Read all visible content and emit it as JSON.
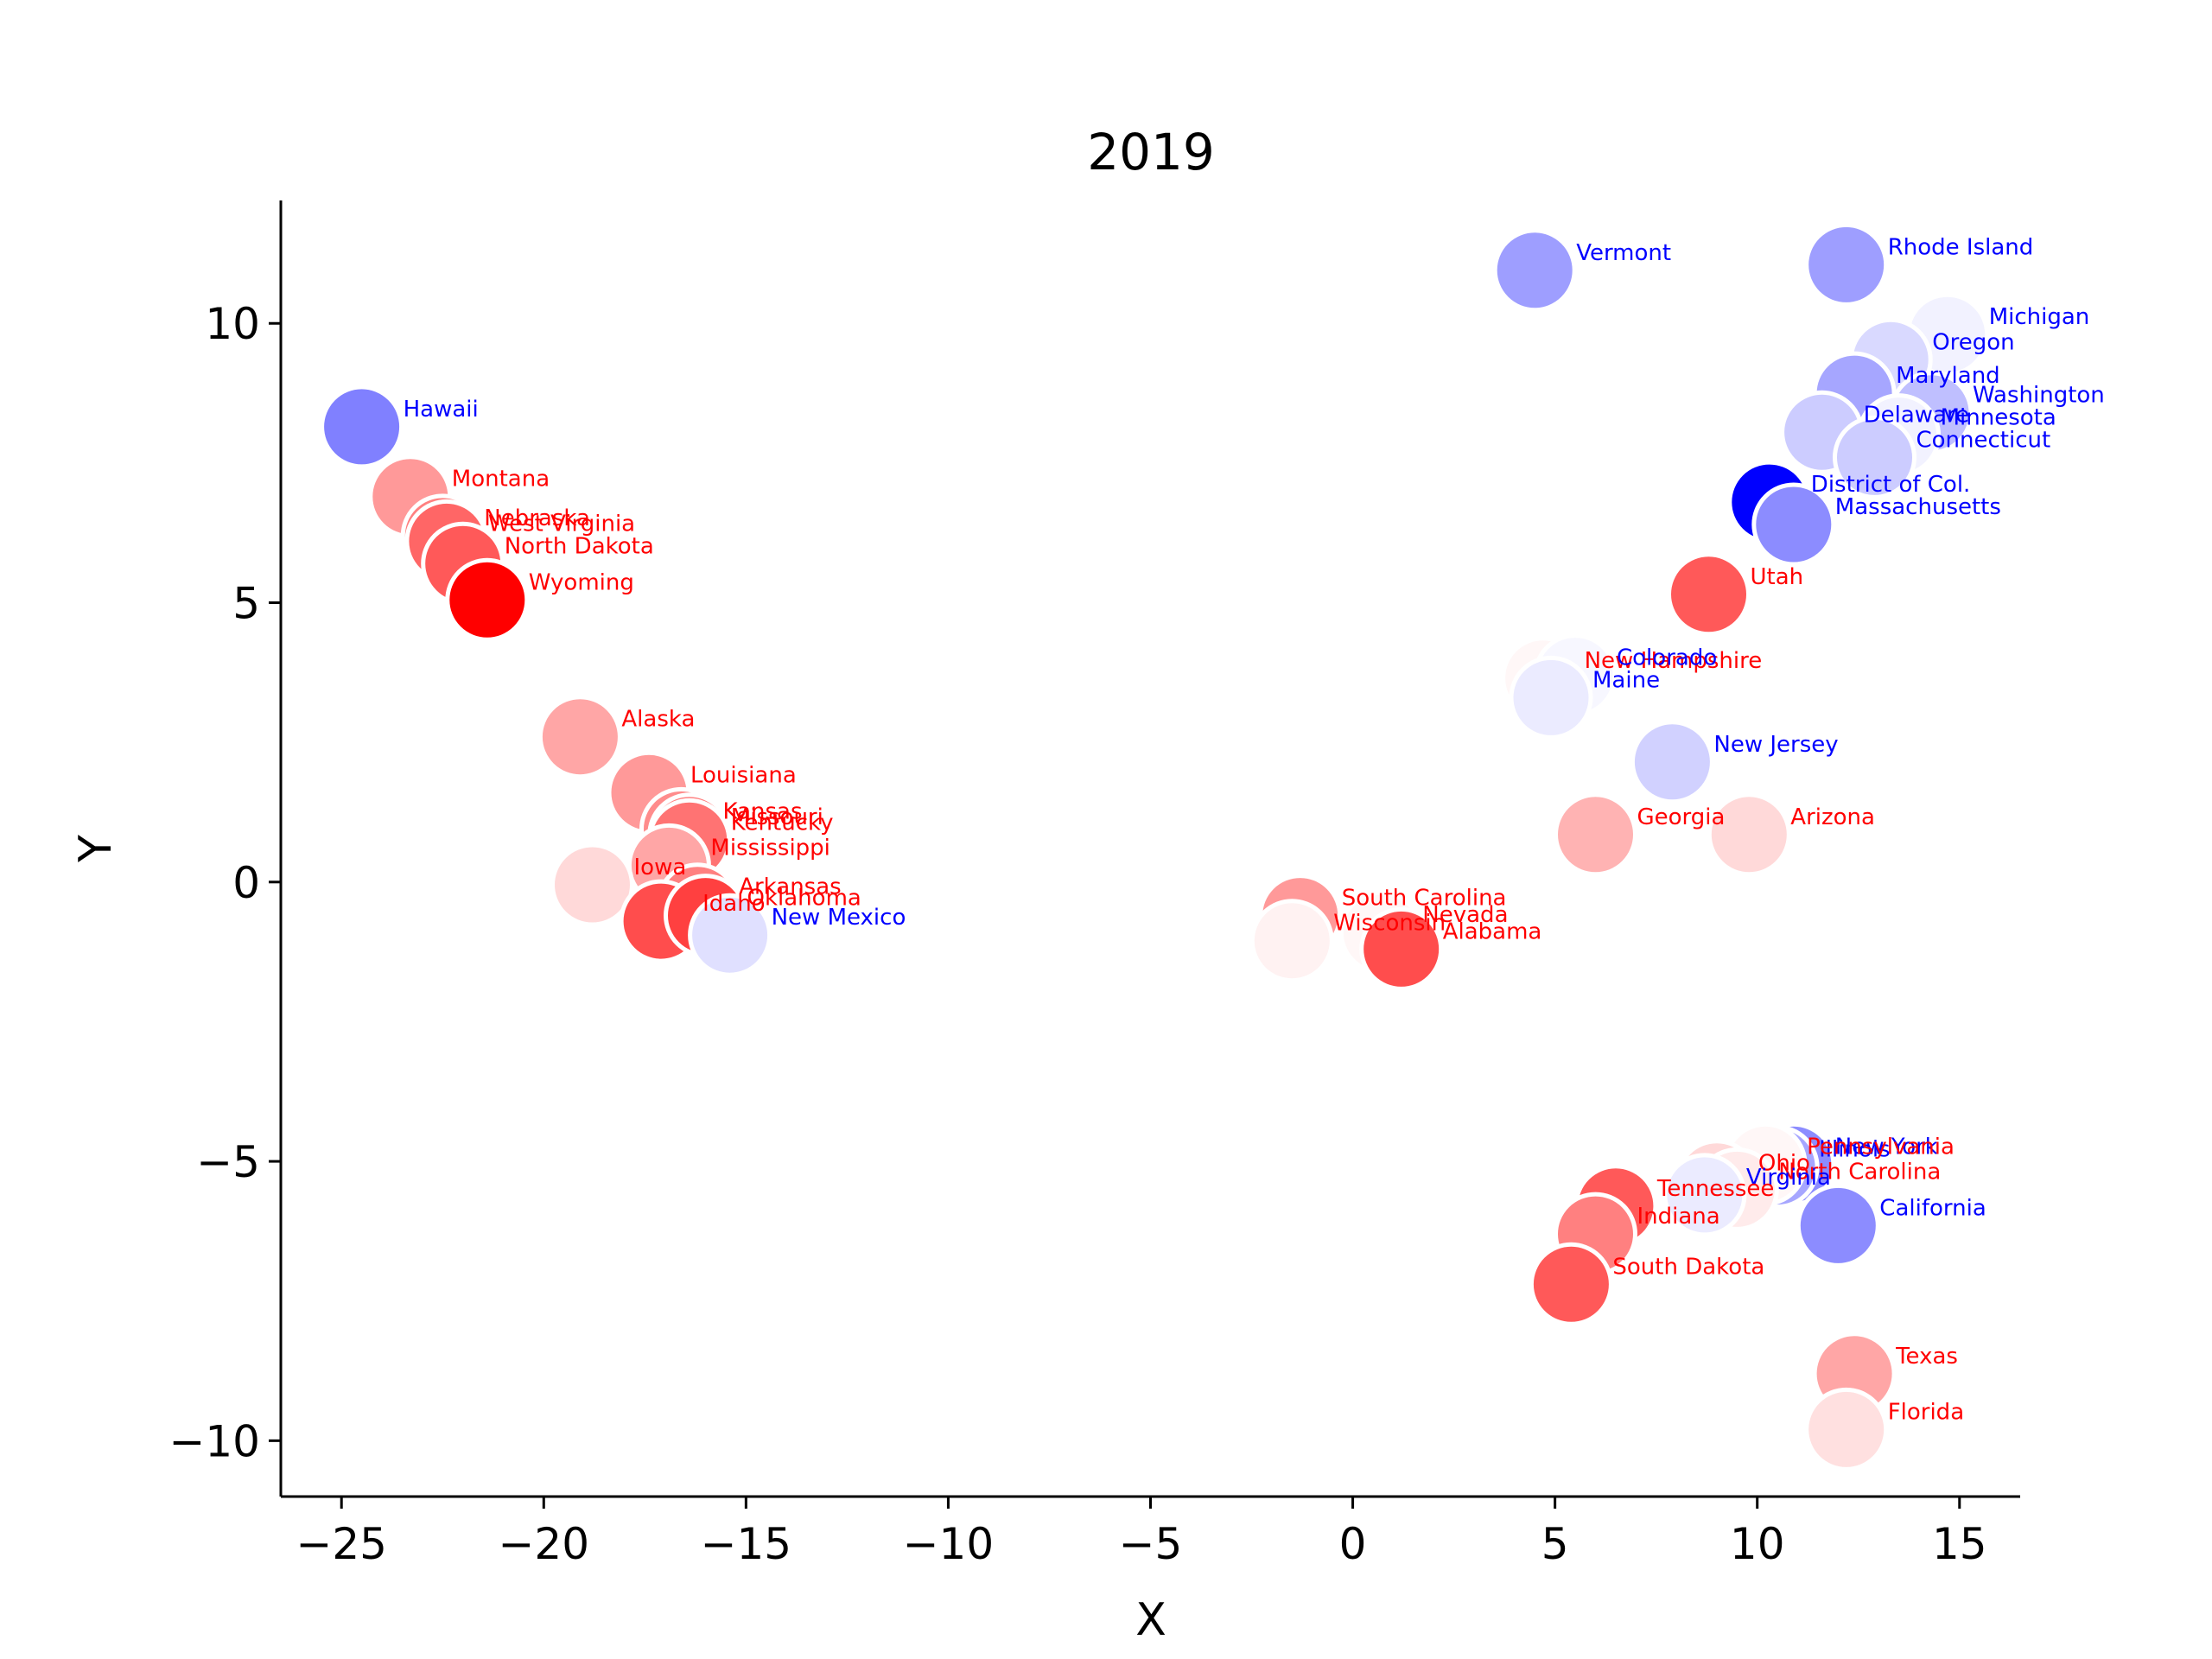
{
  "chart_data": {
    "type": "scatter",
    "title": "2019",
    "xlabel": "X",
    "ylabel": "Y",
    "xlim": [
      -26.5,
      16.5
    ],
    "ylim": [
      -11,
      12.2
    ],
    "xticks": [
      -25,
      -20,
      -15,
      -10,
      -5,
      0,
      5,
      10,
      15
    ],
    "yticks": [
      -10,
      -5,
      0,
      5,
      10
    ],
    "xtick_labels": [
      "−25",
      "−20",
      "−15",
      "−10",
      "−5",
      "0",
      "5",
      "10",
      "15"
    ],
    "ytick_labels": [
      "−10",
      "−5",
      "0",
      "5",
      "10"
    ],
    "grid": false,
    "legend": "none",
    "colors": {
      "red_party": "#ff0000",
      "blue_party": "#0000ff",
      "point_edge": "#ffffff"
    },
    "points": [
      {
        "label": "Hawaii",
        "x": -24.5,
        "y": 8.15,
        "party": "blue",
        "intensity": 0.5
      },
      {
        "label": "Montana",
        "x": -23.3,
        "y": 6.9,
        "party": "red",
        "intensity": 0.4
      },
      {
        "label": "Nebraska",
        "x": -22.5,
        "y": 6.2,
        "party": "red",
        "intensity": 0.5
      },
      {
        "label": "West Virginia",
        "x": -22.4,
        "y": 6.1,
        "party": "red",
        "intensity": 0.6
      },
      {
        "label": "North Dakota",
        "x": -22.0,
        "y": 5.7,
        "party": "red",
        "intensity": 0.65
      },
      {
        "label": "Wyoming",
        "x": -21.4,
        "y": 5.05,
        "party": "red",
        "intensity": 1.0
      },
      {
        "label": "Alaska",
        "x": -19.1,
        "y": 2.6,
        "party": "red",
        "intensity": 0.35
      },
      {
        "label": "Louisiana",
        "x": -17.4,
        "y": 1.6,
        "party": "red",
        "intensity": 0.4
      },
      {
        "label": "Kansas",
        "x": -16.6,
        "y": 0.95,
        "party": "red",
        "intensity": 0.45
      },
      {
        "label": "Missouri",
        "x": -16.4,
        "y": 0.85,
        "party": "red",
        "intensity": 0.5
      },
      {
        "label": "Kentucky",
        "x": -16.4,
        "y": 0.75,
        "party": "red",
        "intensity": 0.55
      },
      {
        "label": "Mississippi",
        "x": -16.9,
        "y": 0.3,
        "party": "red",
        "intensity": 0.35
      },
      {
        "label": "Iowa",
        "x": -18.8,
        "y": -0.05,
        "party": "red",
        "intensity": 0.15
      },
      {
        "label": "Arkansas",
        "x": -16.2,
        "y": -0.4,
        "party": "red",
        "intensity": 0.5
      },
      {
        "label": "Idaho",
        "x": -17.1,
        "y": -0.7,
        "party": "red",
        "intensity": 0.7
      },
      {
        "label": "Oklahoma",
        "x": -16.0,
        "y": -0.6,
        "party": "red",
        "intensity": 0.75
      },
      {
        "label": "New Mexico",
        "x": -15.4,
        "y": -0.95,
        "party": "blue",
        "intensity": 0.12
      },
      {
        "label": "Vermont",
        "x": 4.5,
        "y": 10.95,
        "party": "blue",
        "intensity": 0.38
      },
      {
        "label": "Rhode Island",
        "x": 12.2,
        "y": 11.05,
        "party": "blue",
        "intensity": 0.38
      },
      {
        "label": "Michigan",
        "x": 14.7,
        "y": 9.8,
        "party": "blue",
        "intensity": 0.05
      },
      {
        "label": "Oregon",
        "x": 13.3,
        "y": 9.35,
        "party": "blue",
        "intensity": 0.15
      },
      {
        "label": "Maryland",
        "x": 12.4,
        "y": 8.75,
        "party": "blue",
        "intensity": 0.35
      },
      {
        "label": "Washington",
        "x": 14.3,
        "y": 8.4,
        "party": "blue",
        "intensity": 0.25
      },
      {
        "label": "Delaware",
        "x": 11.6,
        "y": 8.05,
        "party": "blue",
        "intensity": 0.2
      },
      {
        "label": "Minnesota",
        "x": 13.5,
        "y": 8.0,
        "party": "blue",
        "intensity": 0.05
      },
      {
        "label": "Connecticut",
        "x": 12.9,
        "y": 7.6,
        "party": "blue",
        "intensity": 0.2
      },
      {
        "label": "District of Col.",
        "x": 10.3,
        "y": 6.8,
        "party": "blue",
        "intensity": 1.0
      },
      {
        "label": "Massachusetts",
        "x": 10.9,
        "y": 6.4,
        "party": "blue",
        "intensity": 0.45
      },
      {
        "label": "Utah",
        "x": 8.8,
        "y": 5.15,
        "party": "red",
        "intensity": 0.65
      },
      {
        "label": "New Hampshire",
        "x": 4.7,
        "y": 3.65,
        "party": "red",
        "intensity": 0.03
      },
      {
        "label": "Colorado",
        "x": 5.5,
        "y": 3.7,
        "party": "blue",
        "intensity": 0.03
      },
      {
        "label": "Maine",
        "x": 4.9,
        "y": 3.3,
        "party": "blue",
        "intensity": 0.08
      },
      {
        "label": "New Jersey",
        "x": 7.9,
        "y": 2.15,
        "party": "blue",
        "intensity": 0.18
      },
      {
        "label": "Georgia",
        "x": 6.0,
        "y": 0.85,
        "party": "red",
        "intensity": 0.3
      },
      {
        "label": "Arizona",
        "x": 9.8,
        "y": 0.85,
        "party": "red",
        "intensity": 0.15
      },
      {
        "label": "South Carolina",
        "x": -1.3,
        "y": -0.6,
        "party": "red",
        "intensity": 0.4
      },
      {
        "label": "Wisconsin",
        "x": -1.5,
        "y": -1.05,
        "party": "red",
        "intensity": 0.05
      },
      {
        "label": "Nevada",
        "x": 0.7,
        "y": -0.9,
        "party": "red",
        "intensity": 0.02
      },
      {
        "label": "Alabama",
        "x": 1.2,
        "y": -1.2,
        "party": "red",
        "intensity": 0.7
      },
      {
        "label": "New York",
        "x": 10.9,
        "y": -5.05,
        "party": "blue",
        "intensity": 0.45
      },
      {
        "label": "Illinois",
        "x": 10.5,
        "y": -5.1,
        "party": "blue",
        "intensity": 0.35
      },
      {
        "label": "Pennsylvania",
        "x": 10.2,
        "y": -5.05,
        "party": "red",
        "intensity": 0.03
      },
      {
        "label": "Ohio",
        "x": 9.0,
        "y": -5.35,
        "party": "red",
        "intensity": 0.15
      },
      {
        "label": "North Carolina",
        "x": 9.5,
        "y": -5.5,
        "party": "red",
        "intensity": 0.08
      },
      {
        "label": "Virginia",
        "x": 8.7,
        "y": -5.6,
        "party": "blue",
        "intensity": 0.08
      },
      {
        "label": "Tennessee",
        "x": 6.5,
        "y": -5.8,
        "party": "red",
        "intensity": 0.65
      },
      {
        "label": "Indiana",
        "x": 6.0,
        "y": -6.3,
        "party": "red",
        "intensity": 0.5
      },
      {
        "label": "California",
        "x": 12.0,
        "y": -6.15,
        "party": "blue",
        "intensity": 0.45
      },
      {
        "label": "South Dakota",
        "x": 5.4,
        "y": -7.2,
        "party": "red",
        "intensity": 0.65
      },
      {
        "label": "Texas",
        "x": 12.4,
        "y": -8.8,
        "party": "red",
        "intensity": 0.35
      },
      {
        "label": "Florida",
        "x": 12.2,
        "y": -9.8,
        "party": "red",
        "intensity": 0.12
      }
    ]
  }
}
